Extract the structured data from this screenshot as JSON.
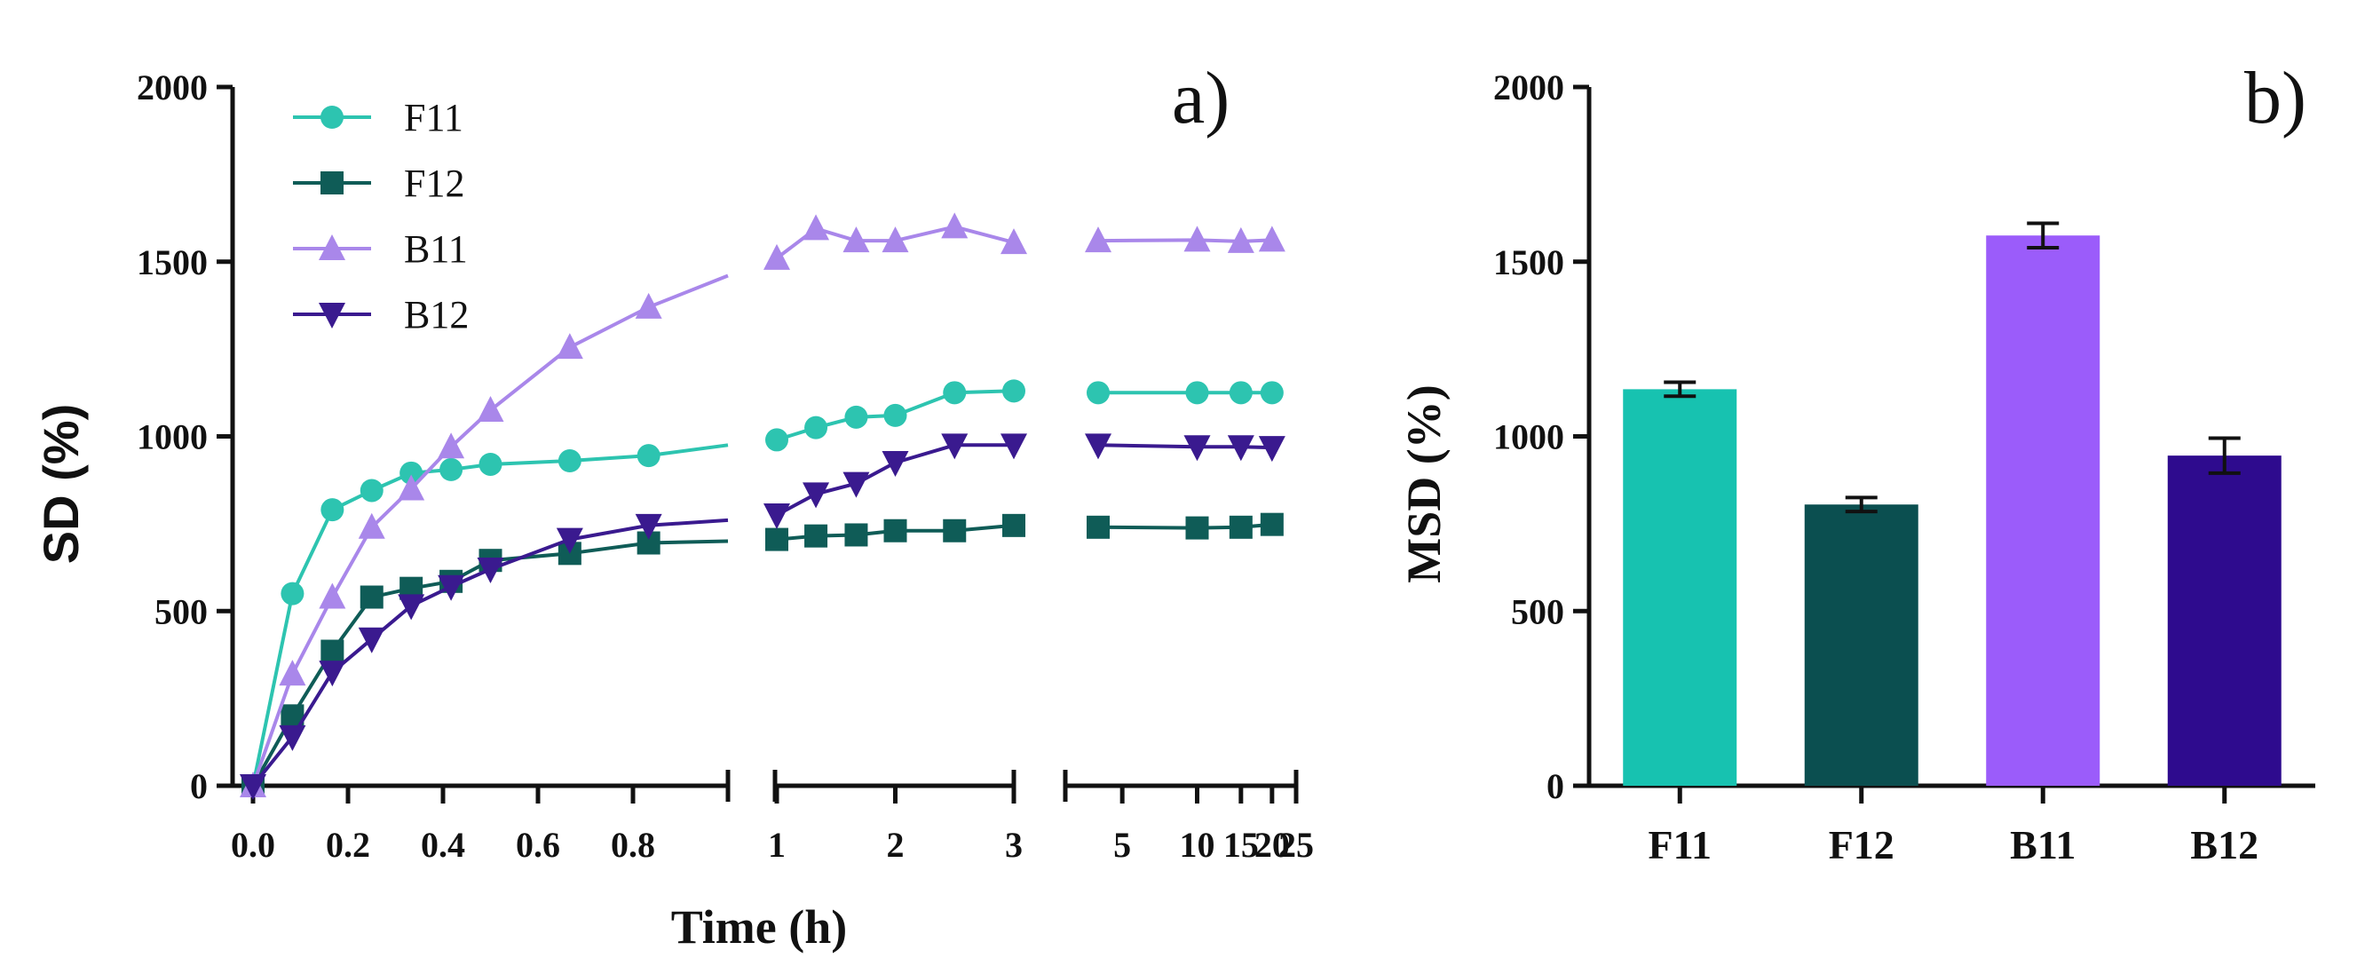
{
  "chart_data": [
    {
      "type": "line",
      "panel_label": "a)",
      "xlabel": "Time (h)",
      "ylabel": "SD (%)",
      "ylim": [
        0,
        2000
      ],
      "yticks": [
        "0",
        "500",
        "1000",
        "1500",
        "2000"
      ],
      "x_segments": [
        {
          "xlim": [
            0,
            1.0
          ],
          "ticks": [
            0.0,
            0.2,
            0.4,
            0.6,
            0.8
          ],
          "tick_labels": [
            "0.0",
            "0.2",
            "0.4",
            "0.6",
            "0.8"
          ]
        },
        {
          "xlim": [
            1,
            3
          ],
          "ticks": [
            1,
            2,
            3
          ],
          "tick_labels": [
            "1",
            "2",
            "3"
          ]
        },
        {
          "xlim": [
            3,
            25
          ],
          "ticks": [
            5,
            10,
            15,
            20,
            25
          ],
          "tick_labels": [
            "5",
            "10",
            "15",
            "20",
            "25"
          ]
        }
      ],
      "legend_position": "top-left",
      "series": [
        {
          "name": "F11",
          "color": "#2dc4b0",
          "marker": "circle",
          "points": [
            [
              0,
              0
            ],
            [
              0.083,
              550
            ],
            [
              0.167,
              790
            ],
            [
              0.25,
              845
            ],
            [
              0.333,
              895
            ],
            [
              0.417,
              905
            ],
            [
              0.5,
              920
            ],
            [
              0.667,
              930
            ],
            [
              0.833,
              945
            ],
            [
              1.0,
              975
            ],
            [
              1,
              990
            ],
            [
              1.33,
              1025
            ],
            [
              1.67,
              1055
            ],
            [
              2,
              1060
            ],
            [
              2.5,
              1125
            ],
            [
              3,
              1130
            ],
            [
              4,
              1125
            ],
            [
              10,
              1125
            ],
            [
              15,
              1125
            ],
            [
              20,
              1125
            ]
          ]
        },
        {
          "name": "F12",
          "color": "#0f5c57",
          "marker": "square",
          "points": [
            [
              0,
              0
            ],
            [
              0.083,
              200
            ],
            [
              0.167,
              385
            ],
            [
              0.25,
              540
            ],
            [
              0.333,
              565
            ],
            [
              0.417,
              585
            ],
            [
              0.5,
              645
            ],
            [
              0.667,
              665
            ],
            [
              0.833,
              695
            ],
            [
              1.0,
              700
            ],
            [
              1,
              705
            ],
            [
              1.33,
              715
            ],
            [
              1.67,
              718
            ],
            [
              2,
              730
            ],
            [
              2.5,
              730
            ],
            [
              3,
              745
            ],
            [
              4,
              740
            ],
            [
              10,
              738
            ],
            [
              15,
              740
            ],
            [
              20,
              748
            ]
          ]
        },
        {
          "name": "B11",
          "color": "#a987ea",
          "marker": "triangle-up",
          "points": [
            [
              0,
              0
            ],
            [
              0.083,
              320
            ],
            [
              0.167,
              540
            ],
            [
              0.25,
              740
            ],
            [
              0.333,
              850
            ],
            [
              0.417,
              970
            ],
            [
              0.5,
              1075
            ],
            [
              0.667,
              1255
            ],
            [
              0.833,
              1370
            ],
            [
              1.0,
              1460
            ],
            [
              1,
              1510
            ],
            [
              1.33,
              1595
            ],
            [
              1.67,
              1560
            ],
            [
              2,
              1560
            ],
            [
              2.5,
              1600
            ],
            [
              3,
              1555
            ],
            [
              4,
              1560
            ],
            [
              10,
              1562
            ],
            [
              15,
              1558
            ],
            [
              20,
              1562
            ]
          ]
        },
        {
          "name": "B12",
          "color": "#3a1a8f",
          "marker": "triangle-down",
          "points": [
            [
              0,
              0
            ],
            [
              0.083,
              140
            ],
            [
              0.167,
              325
            ],
            [
              0.25,
              420
            ],
            [
              0.333,
              515
            ],
            [
              0.417,
              570
            ],
            [
              0.5,
              620
            ],
            [
              0.667,
              705
            ],
            [
              0.833,
              745
            ],
            [
              1.0,
              760
            ],
            [
              1,
              775
            ],
            [
              1.33,
              835
            ],
            [
              1.67,
              865
            ],
            [
              2,
              925
            ],
            [
              2.5,
              975
            ],
            [
              3,
              975
            ],
            [
              4,
              975
            ],
            [
              10,
              970
            ],
            [
              15,
              970
            ],
            [
              20,
              968
            ]
          ]
        }
      ]
    },
    {
      "type": "bar",
      "panel_label": "b)",
      "xlabel": "",
      "ylabel": "MSD (%)",
      "ylim": [
        0,
        2000
      ],
      "yticks": [
        "0",
        "500",
        "1000",
        "1500",
        "2000"
      ],
      "categories": [
        "F11",
        "F12",
        "B11",
        "B12"
      ],
      "values": [
        1135,
        805,
        1575,
        945
      ],
      "errors": [
        20,
        20,
        35,
        50
      ],
      "colors": [
        "#17c2b0",
        "#0b4f50",
        "#9b5cfa",
        "#2e0b8e"
      ]
    }
  ]
}
